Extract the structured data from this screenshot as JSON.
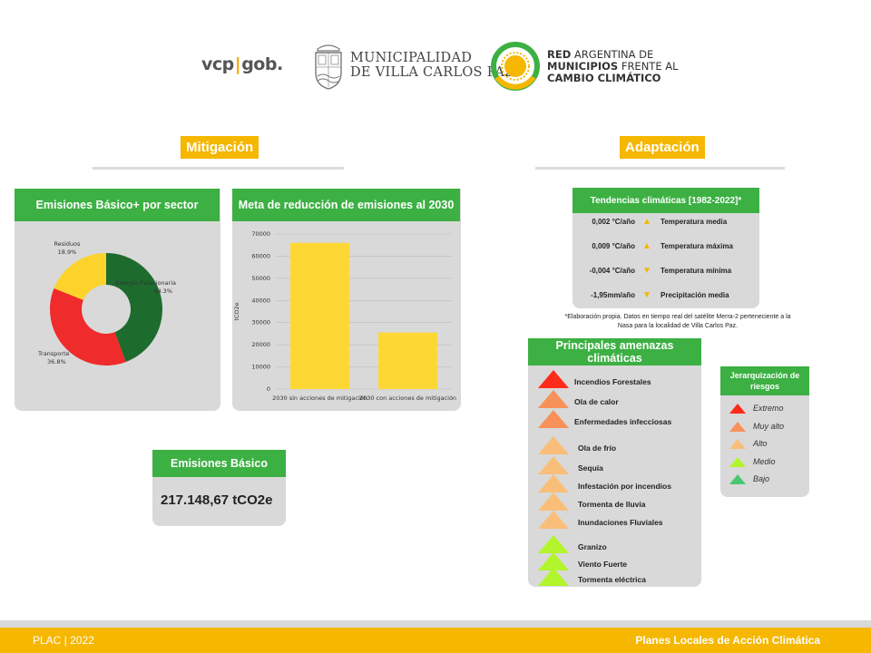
{
  "header": {
    "vcp_left": "vcp",
    "vcp_right": "gob.",
    "municipality_line1": "MUNICIPALIDAD",
    "municipality_line2": "DE VILLA CARLOS PAZ",
    "red_line1_bold": "RED",
    "red_line1": " ARGENTINA DE",
    "red_line2_bold": "MUNICIPIOS",
    "red_line2": " FRENTE AL",
    "red_line3": "CAMBIO CLIMÁTICO"
  },
  "mitigation": {
    "title": "Mitigación",
    "sector_panel_title": "Emisiones Básico+ por sector",
    "reduction_panel_title": "Meta de reducción de emisiones al 2030",
    "basic_panel_title": "Emisiones Básico",
    "basic_value": "217.148,67 tCO2e"
  },
  "adaptation": {
    "title": "Adaptación",
    "trends_title": "Tendencias climáticas [1982-2022]*",
    "trends": [
      {
        "value": "0,002 °C/año",
        "direction": "up",
        "name": "Temperatura media"
      },
      {
        "value": "0,009 °C/año",
        "direction": "up",
        "name": "Temperatura máxima"
      },
      {
        "value": "-0,004 °C/año",
        "direction": "down",
        "name": "Temperatura mínima"
      },
      {
        "value": "-1,95mm/año",
        "direction": "down",
        "name": "Precipitación media"
      }
    ],
    "note_line1": "*Elaboración propia. Datos en tiempo real del satélite Merra-2 perteneciente a la",
    "note_line2": "Nasa para la localidad de Villa Carlos Paz.",
    "threats_title": "Principales amenazas climáticas",
    "threats": [
      {
        "label": "Incendios Forestales",
        "level": "extremo"
      },
      {
        "label": "Ola de calor",
        "level": "muy_alto"
      },
      {
        "label": "Enfermedades infecciosas",
        "level": "muy_alto"
      },
      {
        "label": "Ola de frío",
        "level": "alto"
      },
      {
        "label": "Sequía",
        "level": "alto"
      },
      {
        "label": "Infestación por incendios",
        "level": "alto"
      },
      {
        "label": "Tormenta de lluvia",
        "level": "alto"
      },
      {
        "label": "Inundaciones Fluviales",
        "level": "alto"
      },
      {
        "label": "Granizo",
        "level": "medio"
      },
      {
        "label": "Viento Fuerte",
        "level": "medio"
      },
      {
        "label": "Tormenta eléctrica",
        "level": "medio"
      }
    ],
    "risk_title_line1": "Jerarquización de",
    "risk_title_line2": "riesgos",
    "risk_levels": [
      {
        "label": "Extremo",
        "color": "#ff2b1a"
      },
      {
        "label": "Muy alto",
        "color": "#f7915a"
      },
      {
        "label": "Alto",
        "color": "#f9bf7a"
      },
      {
        "label": "Medio",
        "color": "#b2f52c"
      },
      {
        "label": "Bajo",
        "color": "#49c96f"
      }
    ]
  },
  "colors": {
    "accent": "#f5b700",
    "green": "#3cb043",
    "extremo": "#ff2b1a",
    "muy_alto": "#f7915a",
    "alto": "#f9bf7a",
    "medio": "#b2f52c"
  },
  "footer": {
    "left": "PLAC | 2022",
    "right": "Planes Locales de Acción Climática"
  },
  "chart_data": [
    {
      "type": "pie",
      "title": "Emisiones Básico+ por sector",
      "variant": "donut",
      "categories": [
        "Energía Estacionaria",
        "Transporte",
        "Residuos"
      ],
      "values": [
        44.3,
        36.8,
        18.9
      ],
      "value_labels": [
        "44.3%",
        "36.8%",
        "18.9%"
      ],
      "colors": [
        "#1e6b2e",
        "#ef2b2b",
        "#fcd32a"
      ]
    },
    {
      "type": "bar",
      "title": "Meta de reducción de emisiones al 2030",
      "categories": [
        "2030 sin acciones de mitigación",
        "2030 con acciones de mitigación"
      ],
      "values": [
        66000,
        25500
      ],
      "ylabel": "tCO2e",
      "ylim": [
        0,
        70000
      ],
      "yticks": [
        0,
        10000,
        20000,
        30000,
        40000,
        50000,
        60000,
        70000
      ],
      "grid": true,
      "color": "#fdd835"
    }
  ]
}
